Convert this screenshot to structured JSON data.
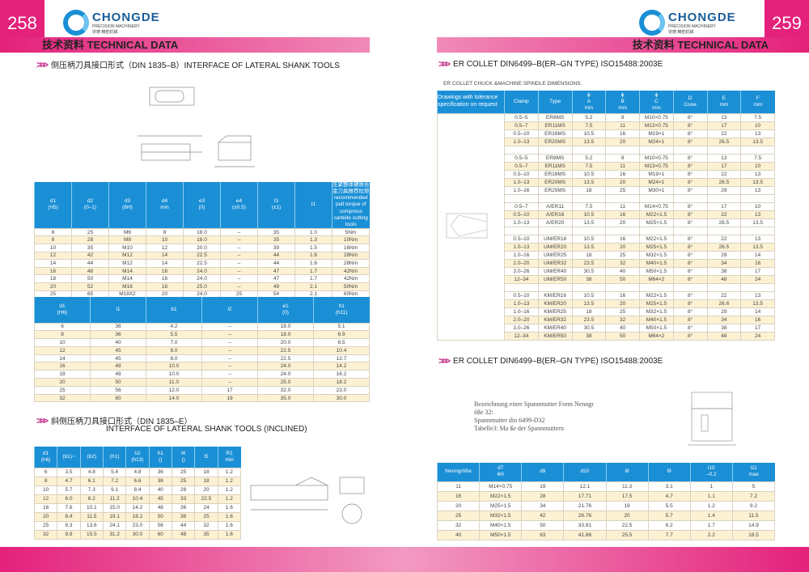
{
  "left": {
    "page_number": "258",
    "band": "技术资料 TECHNICAL DATA",
    "logo": {
      "name": "CHONGDE",
      "sub": "PRECISION MACHINERY",
      "cn": "崇德 精密机械"
    },
    "section1": "侧压柄刀具接口形式（DIN 1835–B）INTERFACE OF LATERAL SHANK TOOLS",
    "section2_cn": "斜侧压柄刀具接口形式（DIN 1835–E）",
    "section2_en": "INTERFACE OF LATERAL SHANK TOOLS (INCLINED)",
    "table1": {
      "headers": [
        [
          "d1",
          "(H5)"
        ],
        [
          "d2",
          "(0–1)"
        ],
        [
          "d3",
          "(6H)"
        ],
        [
          "d4",
          "min"
        ],
        [
          "e3",
          "(0)"
        ],
        [
          "e4",
          "(±0.5)"
        ],
        [
          "l3",
          "(±1)"
        ],
        [
          "t1"
        ],
        [
          "压紧整体硬质合金刀具推荐拉矩",
          "recommended pull torque of",
          "compress carbide cutting tools"
        ]
      ],
      "rows": [
        [
          "6",
          "25",
          "M6",
          "8",
          "18.0",
          "–",
          "35",
          "1.0",
          "5Nm"
        ],
        [
          "8",
          "28",
          "M8",
          "10",
          "18.0",
          "–",
          "35",
          "1.3",
          "10Nm"
        ],
        [
          "10",
          "35",
          "M10",
          "12",
          "20.0",
          "–",
          "39",
          "1.5",
          "16Nm"
        ],
        [
          "12",
          "42",
          "M12",
          "14",
          "22.5",
          "–",
          "44",
          "1.6",
          "28Nm"
        ],
        [
          "14",
          "44",
          "M12",
          "14",
          "22.5",
          "–",
          "44",
          "1.6",
          "28Nm"
        ],
        [
          "16",
          "48",
          "M14",
          "16",
          "24.0",
          "–",
          "47",
          "1.7",
          "42Nm"
        ],
        [
          "18",
          "50",
          "M14",
          "16",
          "24.0",
          "–",
          "47",
          "1.7",
          "42Nm"
        ],
        [
          "20",
          "52",
          "M16",
          "18",
          "25.0",
          "–",
          "49",
          "2.1",
          "50Nm"
        ],
        [
          "25",
          "65",
          "M18X2",
          "20",
          "24.0",
          "25",
          "54",
          "2.1",
          "60Nm"
        ],
        [
          "32",
          "72",
          "M20X2",
          "22",
          "24.0",
          "28",
          "56",
          "2.2",
          "60Nm"
        ]
      ]
    },
    "table2": {
      "headers": [
        [
          "d1",
          "(H6)"
        ],
        [
          "l1"
        ],
        [
          "b1"
        ],
        [
          "l2"
        ],
        [
          "e1",
          "(0)"
        ],
        [
          "h1",
          "(h11)"
        ]
      ],
      "rows": [
        [
          "6",
          "36",
          "4.2",
          "–",
          "18.0",
          "5.1"
        ],
        [
          "8",
          "36",
          "5.5",
          "–",
          "18.0",
          "6.9"
        ],
        [
          "10",
          "40",
          "7.0",
          "–",
          "20.0",
          "8.5"
        ],
        [
          "12",
          "45",
          "8.0",
          "–",
          "22.5",
          "10.4"
        ],
        [
          "14",
          "45",
          "8.0",
          "–",
          "22.5",
          "12.7"
        ],
        [
          "16",
          "48",
          "10.0",
          "–",
          "24.0",
          "14.2"
        ],
        [
          "18",
          "48",
          "10.0",
          "–",
          "24.0",
          "16.2"
        ],
        [
          "20",
          "50",
          "11.0",
          "–",
          "25.0",
          "18.2"
        ],
        [
          "25",
          "56",
          "12.0",
          "17",
          "32.0",
          "23.0"
        ],
        [
          "32",
          "60",
          "14.0",
          "19",
          "35.0",
          "30.0"
        ]
      ]
    },
    "table3": {
      "headers": [
        [
          "d1",
          "(h6)"
        ],
        [
          "(b1)~"
        ],
        [
          "(b2)"
        ],
        [
          "(h1)"
        ],
        [
          "h2",
          "(h13)"
        ],
        [
          "h1",
          "()"
        ],
        [
          "l4",
          "()"
        ],
        [
          "l5"
        ],
        [
          "R1",
          "min"
        ]
      ],
      "rows": [
        [
          "6",
          "3.5",
          "4.8",
          "5.4",
          "4.8",
          "36",
          "25",
          "18",
          "1.2"
        ],
        [
          "8",
          "4.7",
          "6.1",
          "7.2",
          "6.6",
          "36",
          "25",
          "18",
          "1.2"
        ],
        [
          "10",
          "5.7",
          "7.3",
          "9.1",
          "8.4",
          "40",
          "28",
          "20",
          "1.2"
        ],
        [
          "12",
          "6.0",
          "8.2",
          "11.2",
          "10.4",
          "45",
          "33",
          "22.5",
          "1.2"
        ],
        [
          "16",
          "7.6",
          "10.1",
          "15.0",
          "14.2",
          "48",
          "36",
          "24",
          "1.6"
        ],
        [
          "20",
          "8.4",
          "11.5",
          "19.1",
          "18.2",
          "50",
          "38",
          "25",
          "1.6"
        ],
        [
          "25",
          "9.3",
          "13.6",
          "24.1",
          "23.0",
          "56",
          "44",
          "32",
          "1.6"
        ],
        [
          "32",
          "9.9",
          "15.5",
          "31.2",
          "30.0",
          "60",
          "48",
          "35",
          "1.6"
        ]
      ]
    }
  },
  "right": {
    "page_number": "259",
    "band": "技术资料 TECHNICAL DATA",
    "logo": {
      "name": "CHONGDE",
      "sub": "PRECISION MACHINERY",
      "cn": "崇德 精密机械"
    },
    "section1": "ER COLLET  DIN6499–B(ER–GN TYPE)  ISO15488:2003E",
    "caption": "ER COLLET CHUCK &MACHINE SPINDLE DIMENSIONS.",
    "section2": "ER COLLET  DIN6499–B(ER–GN TYPE)  ISO15488:2003E",
    "german_text": [
      "Bezeichnung einer Spannmutter Form Nenngr",
      "öße 32:",
      "Spannmutter din 6499-D32",
      "Tabelle3: Ma ße der Spannmuttern"
    ],
    "table4": {
      "first_header": "Drawings with tolerance specification on request",
      "headers": [
        [
          "",
          "Clamp",
          ""
        ],
        [
          "",
          "Type",
          ""
        ],
        [
          "ϕ",
          "A",
          "mm"
        ],
        [
          "ϕ",
          "B",
          "mm"
        ],
        [
          "ϕ",
          "C",
          "mm"
        ],
        [
          "",
          "D",
          "Cone"
        ],
        [
          "",
          "E",
          "mm"
        ],
        [
          "",
          "F",
          "mm"
        ]
      ],
      "rows": [
        [
          "0.5–5",
          "ER8MS",
          "5.2",
          "8",
          "M10×0.75",
          "8°",
          "13",
          "7.5"
        ],
        [
          "0.5–7",
          "ER11MS",
          "7.5",
          "11",
          "M13×0.75",
          "8°",
          "17",
          "10"
        ],
        [
          "0.5–10",
          "ER16MS",
          "10.5",
          "16",
          "M19×1",
          "8°",
          "22",
          "13"
        ],
        [
          "1.0–13",
          "ER20MS",
          "13.5",
          "20",
          "M24×1",
          "8°",
          "26.5",
          "13.5"
        ],
        null,
        [
          "0.5–5",
          "ER8MS",
          "5.2",
          "8",
          "M10×0.75",
          "8°",
          "13",
          "7.5"
        ],
        [
          "0.5–7",
          "ER11MS",
          "7.5",
          "11",
          "M13×0.75",
          "8°",
          "17",
          "10"
        ],
        [
          "0.5–10",
          "ER16MS",
          "10.5",
          "16",
          "M19×1",
          "8°",
          "22",
          "13"
        ],
        [
          "1.0–13",
          "ER20MS",
          "13.5",
          "20",
          "M24×1",
          "8°",
          "26.5",
          "13.5"
        ],
        [
          "1.0–16",
          "ER25MS",
          "18",
          "25",
          "M30×1",
          "8°",
          "29",
          "13"
        ],
        null,
        [
          "0.5–7",
          "A/ER11",
          "7.5",
          "11",
          "M14×0.75",
          "8°",
          "17",
          "10"
        ],
        [
          "0.5–10",
          "A/ER16",
          "10.5",
          "16",
          "M22×1.5",
          "8°",
          "22",
          "13"
        ],
        [
          "1.0–13",
          "A/ER20",
          "13.5",
          "20",
          "M25×1.5",
          "8°",
          "26.5",
          "13.5"
        ],
        null,
        [
          "0.5–10",
          "UM/ER16",
          "10.5",
          "16",
          "M22×1.5",
          "8°",
          "22",
          "13"
        ],
        [
          "1.0–13",
          "UM/ER20",
          "13.5",
          "20",
          "M25×1.5",
          "8°",
          "26.5",
          "13.5"
        ],
        [
          "1.0–16",
          "UM/ER25",
          "18",
          "25",
          "M32×1.5",
          "8°",
          "29",
          "14"
        ],
        [
          "2.0–20",
          "UM/ER32",
          "23.5",
          "32",
          "M40×1.5",
          "8°",
          "34",
          "16"
        ],
        [
          "3.0–26",
          "UM/ER40",
          "30.5",
          "40",
          "M50×1.5",
          "8°",
          "38",
          "17"
        ],
        [
          "12–34",
          "UM/ER50",
          "38",
          "50",
          "M64×2",
          "8°",
          "48",
          "24"
        ],
        null,
        [
          "0.5–10",
          "KM/ER16",
          "10.5",
          "16",
          "M22×1.5",
          "8°",
          "22",
          "13"
        ],
        [
          "1.0–13",
          "KM/ER20",
          "13.5",
          "20",
          "M25×1.5",
          "8°",
          "26.6",
          "13.5"
        ],
        [
          "1.0–16",
          "KM/ER25",
          "18",
          "25",
          "M32×1.5",
          "8°",
          "29",
          "14"
        ],
        [
          "2.0–20",
          "KM/ER32",
          "23.5",
          "32",
          "M40×1.5",
          "8°",
          "34",
          "16"
        ],
        [
          "3.0–26",
          "KM/ER40",
          "30.5",
          "40",
          "M50×1.5",
          "8°",
          "38",
          "17"
        ],
        [
          "12–34",
          "KM/ER50",
          "38",
          "50",
          "M64×2",
          "8°",
          "48",
          "24"
        ]
      ]
    },
    "table5": {
      "headers": [
        [
          "Nenngröße"
        ],
        [
          "d7",
          "6H"
        ],
        [
          "d9",
          ""
        ],
        [
          "d10",
          ""
        ],
        [
          "l8",
          ""
        ],
        [
          "l9",
          ""
        ],
        [
          "l10",
          "–0.2"
        ],
        [
          "l11",
          "max"
        ]
      ],
      "rows": [
        [
          "11",
          "M14×0.75",
          "19",
          "12.1",
          "11.3",
          "3.1",
          "1",
          "5"
        ],
        [
          "16",
          "M22×1.5",
          "28",
          "17.71",
          "17.5",
          "4.7",
          "1.1",
          "7.2"
        ],
        [
          "20",
          "M25×1.5",
          "34",
          "21.76",
          "19",
          "5.5",
          "1.2",
          "9.2"
        ],
        [
          "25",
          "M32×1.5",
          "42",
          "26.76",
          "20",
          "5.7",
          "1.4",
          "11.5"
        ],
        [
          "32",
          "M40×1.5",
          "50",
          "33.81",
          "22.5",
          "6.2",
          "1.7",
          "14.9"
        ],
        [
          "40",
          "M50×1.5",
          "63",
          "41.86",
          "25.5",
          "7.7",
          "2.2",
          "18.5"
        ]
      ]
    }
  },
  "colors": {
    "accent": "#e4217b",
    "table_header": "#1a8fd6",
    "row_alt": "#fcf1d2"
  }
}
